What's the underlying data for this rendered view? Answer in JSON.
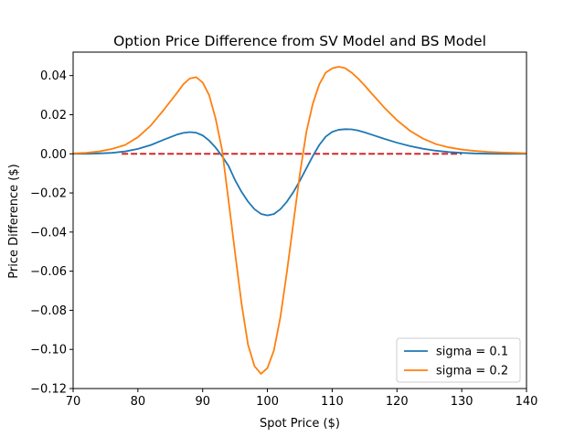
{
  "chart_data": {
    "type": "line",
    "title": "Option Price Difference from SV Model and BS Model",
    "xlabel": "Spot Price ($)",
    "ylabel": "Price Difference ($)",
    "xlim": [
      70,
      140
    ],
    "ylim": [
      -0.12,
      0.052
    ],
    "xticks": [
      70,
      80,
      90,
      100,
      110,
      120,
      130,
      140
    ],
    "yticks": [
      -0.12,
      -0.1,
      -0.08,
      -0.06,
      -0.04,
      -0.02,
      0.0,
      0.02,
      0.04
    ],
    "xtick_labels": [
      "70",
      "80",
      "90",
      "100",
      "110",
      "120",
      "130",
      "140"
    ],
    "ytick_labels": [
      "−0.12",
      "−0.10",
      "−0.08",
      "−0.06",
      "−0.04",
      "−0.02",
      "0.00",
      "0.02",
      "0.04"
    ],
    "grid": false,
    "legend_position": "lower-right",
    "series": [
      {
        "name": "sigma = 0.1",
        "color": "#1f77b4",
        "x": [
          70,
          72,
          74,
          76,
          78,
          80,
          82,
          84,
          86,
          87,
          88,
          89,
          90,
          91,
          92,
          93,
          94,
          95,
          96,
          97,
          98,
          99,
          100,
          101,
          102,
          103,
          104,
          105,
          106,
          107,
          108,
          109,
          110,
          111,
          112,
          113,
          114,
          115,
          116,
          118,
          120,
          122,
          124,
          126,
          128,
          130,
          132,
          134,
          136,
          138,
          140
        ],
        "values": [
          0.0,
          0.0,
          0.0002,
          0.0005,
          0.0012,
          0.0025,
          0.0045,
          0.0072,
          0.0098,
          0.0107,
          0.0111,
          0.0108,
          0.0094,
          0.0068,
          0.0032,
          -0.0012,
          -0.0062,
          -0.0134,
          -0.0194,
          -0.0244,
          -0.0283,
          -0.0307,
          -0.0315,
          -0.0308,
          -0.0283,
          -0.0245,
          -0.0196,
          -0.0138,
          -0.0075,
          -0.0012,
          0.0045,
          0.0088,
          0.0112,
          0.0123,
          0.0126,
          0.0125,
          0.0119,
          0.011,
          0.0099,
          0.0077,
          0.0057,
          0.004,
          0.0026,
          0.0016,
          0.0009,
          0.0005,
          0.0002,
          0.0001,
          0.0,
          0.0,
          0.0
        ]
      },
      {
        "name": "sigma = 0.2",
        "color": "#ff7f0e",
        "x": [
          70,
          72,
          74,
          76,
          78,
          80,
          82,
          84,
          86,
          87,
          88,
          89,
          90,
          91,
          92,
          93,
          94,
          95,
          96,
          97,
          98,
          99,
          100,
          101,
          102,
          103,
          104,
          105,
          106,
          107,
          108,
          109,
          110,
          111,
          112,
          113,
          114,
          115,
          116,
          118,
          120,
          122,
          124,
          126,
          128,
          130,
          132,
          134,
          136,
          138,
          140
        ],
        "values": [
          0.0002,
          0.0005,
          0.0012,
          0.0025,
          0.0045,
          0.0085,
          0.0145,
          0.0225,
          0.031,
          0.0355,
          0.0385,
          0.0392,
          0.0365,
          0.03,
          0.018,
          0.002,
          -0.024,
          -0.0505,
          -0.0765,
          -0.0975,
          -0.1085,
          -0.1125,
          -0.1095,
          -0.1005,
          -0.0835,
          -0.0605,
          -0.0355,
          -0.0105,
          0.011,
          0.0255,
          0.0355,
          0.0415,
          0.0437,
          0.0445,
          0.0438,
          0.0415,
          0.0385,
          0.035,
          0.0312,
          0.0238,
          0.0172,
          0.0118,
          0.0078,
          0.005,
          0.0033,
          0.0022,
          0.0015,
          0.001,
          0.0007,
          0.0005,
          0.0003
        ]
      }
    ],
    "reference_line": {
      "y": 0,
      "x_range": [
        77.5,
        130
      ],
      "color": "#d62728",
      "style": "dashed"
    }
  }
}
